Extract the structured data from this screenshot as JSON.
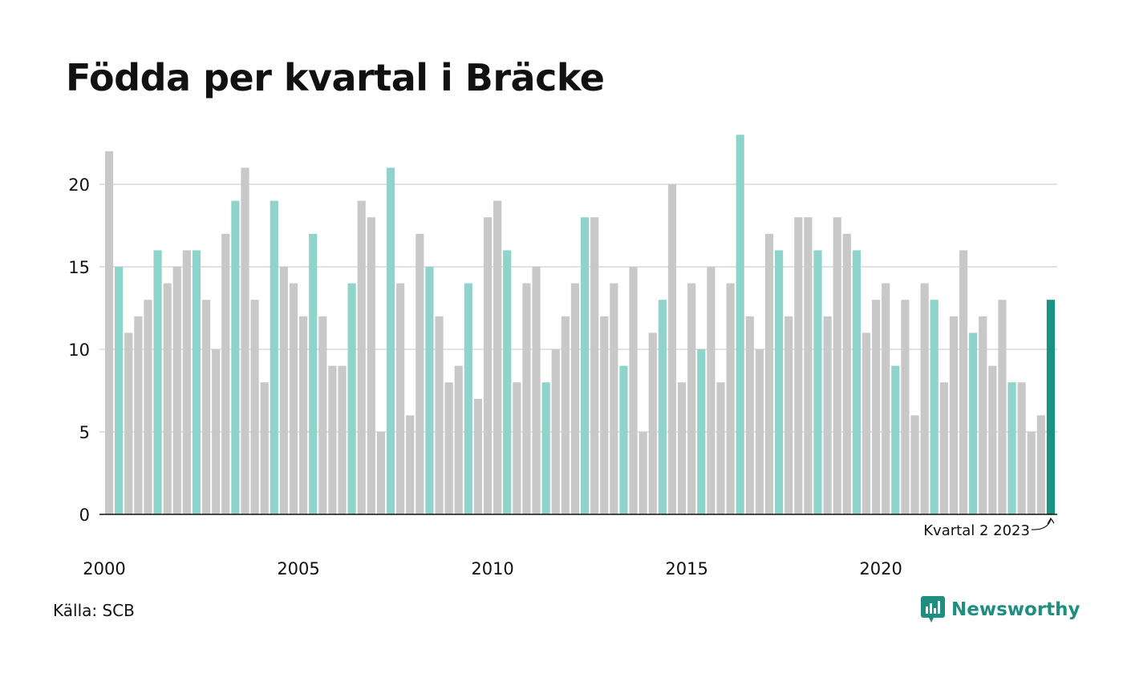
{
  "title": "Födda per kvartal i Bräcke",
  "source": "Källa: SCB",
  "brand": "Newsworthy",
  "colors": {
    "grey": "#c8c8c8",
    "q2": "#8fd3ca",
    "latest": "#1a9282",
    "grid": "#e2e2e2",
    "axis": "#111111"
  },
  "chart_data": {
    "type": "bar",
    "ylim": [
      0,
      23
    ],
    "yticks": [
      0,
      5,
      10,
      15,
      20
    ],
    "xticks": [
      "2000",
      "2005",
      "2010",
      "2015",
      "2020"
    ],
    "start_year": 2000,
    "highlight_quarter": 2,
    "annotation": "Kvartal 2 2023",
    "values": [
      22,
      15,
      11,
      12,
      13,
      16,
      14,
      15,
      16,
      16,
      13,
      10,
      17,
      19,
      21,
      13,
      8,
      19,
      15,
      14,
      12,
      17,
      12,
      9,
      9,
      14,
      19,
      18,
      5,
      21,
      14,
      6,
      17,
      15,
      12,
      8,
      9,
      14,
      7,
      18,
      19,
      16,
      8,
      14,
      15,
      8,
      10,
      12,
      14,
      18,
      18,
      12,
      14,
      9,
      15,
      5,
      11,
      13,
      20,
      8,
      14,
      10,
      15,
      8,
      14,
      23,
      12,
      10,
      17,
      16,
      12,
      18,
      18,
      16,
      12,
      18,
      17,
      16,
      11,
      13,
      14,
      9,
      13,
      6,
      14,
      13,
      8,
      12,
      16,
      11,
      12,
      9,
      13,
      8,
      8,
      5,
      6,
      13
    ]
  }
}
